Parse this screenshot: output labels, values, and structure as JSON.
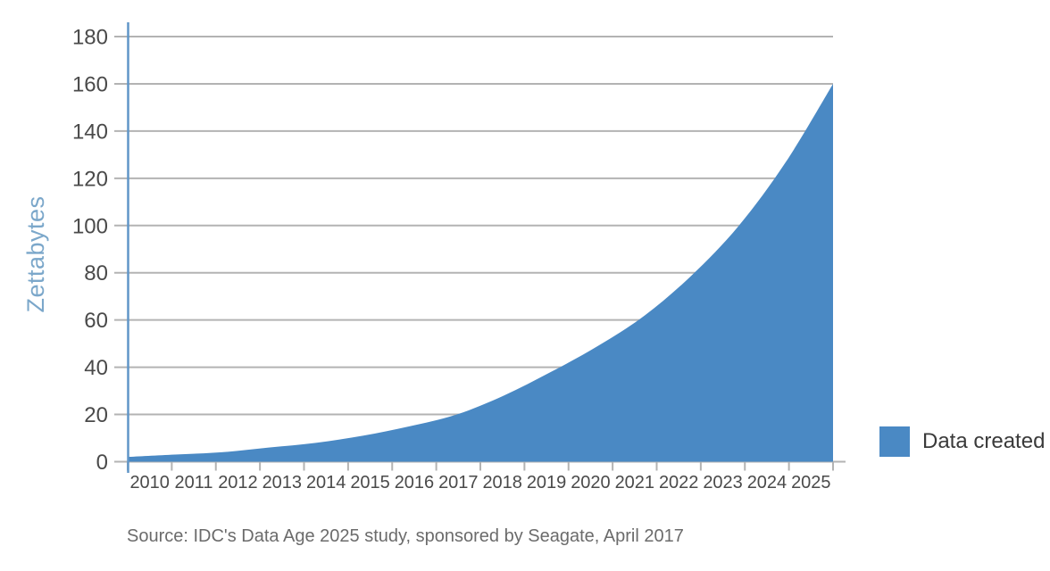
{
  "figure": {
    "source_note": "Source: IDC's Data Age 2025 study, sponsored by Seagate, April 2017"
  },
  "legend": {
    "items": [
      {
        "label": "Data created",
        "swatch_color": "#4A89C4"
      }
    ]
  },
  "chart_data": {
    "type": "area",
    "title": "",
    "xlabel": "",
    "ylabel": "Zettabytes",
    "categories": [
      "2010",
      "2011",
      "2012",
      "2013",
      "2014",
      "2015",
      "2016",
      "2017",
      "2018",
      "2019",
      "2020",
      "2021",
      "2022",
      "2023",
      "2024",
      "2025"
    ],
    "series": [
      {
        "name": "Data created",
        "values": [
          2,
          3,
          4,
          6,
          8,
          11,
          15,
          20,
          28,
          38,
          49,
          62,
          79,
          100,
          127,
          160
        ]
      }
    ],
    "ylim": [
      0,
      180
    ],
    "ytick_step": 20,
    "yticks": [
      0,
      20,
      40,
      60,
      80,
      100,
      120,
      140,
      160,
      180
    ],
    "grid": "horizontal",
    "legend_position": "right",
    "colors": {
      "area": "#4A89C4",
      "y_axis_line": "#6096C8",
      "gridline": "#B3B3B3",
      "tick_label": "#4A4A4A",
      "ylabel_text": "#7BA7CA",
      "source_text": "#6B6B6B",
      "legend_text": "#3A3A3A",
      "background": "#FFFFFF"
    }
  }
}
